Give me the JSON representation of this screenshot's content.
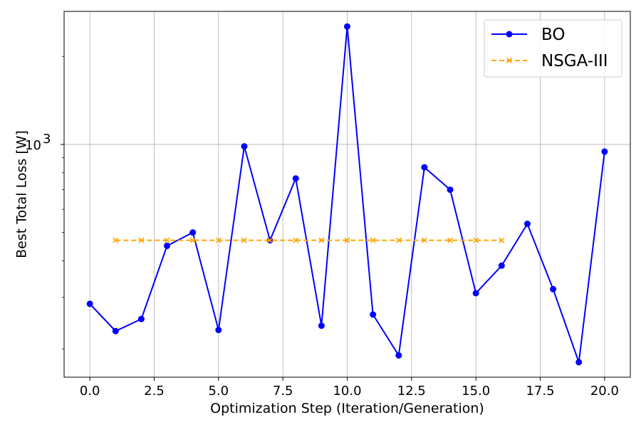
{
  "chart_data": {
    "type": "line",
    "xlabel": "Optimization Step (Iteration/Generation)",
    "ylabel": "Best Total Loss [W]",
    "yscale": "log",
    "xlim": [
      -1.0,
      21.0
    ],
    "ylim": [
      160,
      2850
    ],
    "grid": true,
    "legend_position": "top-right",
    "x_ticks": [
      0.0,
      2.5,
      5.0,
      7.5,
      10.0,
      12.5,
      15.0,
      17.5,
      20.0
    ],
    "x_tick_labels": [
      "0.0",
      "2.5",
      "5.0",
      "7.5",
      "10.0",
      "12.5",
      "15.0",
      "17.5",
      "20.0"
    ],
    "y_major_ticks": [
      {
        "value": 1000,
        "base": "10",
        "exp": "3"
      }
    ],
    "y_minor_ticks": [
      200,
      300,
      400,
      500,
      600,
      700,
      800,
      900,
      2000
    ],
    "series": [
      {
        "name": "BO",
        "color": "#0000ff",
        "line_style": "solid",
        "marker": "circle",
        "x": [
          0,
          1,
          2,
          3,
          4,
          5,
          6,
          7,
          8,
          9,
          10,
          11,
          12,
          13,
          14,
          15,
          16,
          17,
          18,
          19,
          20
        ],
        "y": [
          285,
          230,
          253,
          450,
          500,
          232,
          985,
          470,
          765,
          240,
          2530,
          262,
          190,
          835,
          700,
          310,
          385,
          535,
          320,
          180,
          945
        ]
      },
      {
        "name": "NSGA-III",
        "color": "#ffa500",
        "line_style": "dashed",
        "marker": "x",
        "x": [
          1,
          2,
          3,
          4,
          5,
          6,
          7,
          8,
          9,
          10,
          11,
          12,
          13,
          14,
          15,
          16
        ],
        "y": [
          470,
          470,
          470,
          470,
          470,
          470,
          470,
          470,
          470,
          470,
          470,
          470,
          470,
          470,
          470,
          470
        ]
      }
    ]
  }
}
